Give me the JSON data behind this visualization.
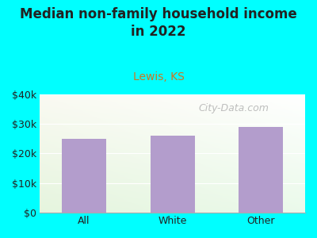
{
  "categories": [
    "All",
    "White",
    "Other"
  ],
  "values": [
    25000,
    26000,
    29000
  ],
  "bar_color": "#b39dcc",
  "title": "Median non-family household income\nin 2022",
  "subtitle": "Lewis, KS",
  "subtitle_color": "#cc7722",
  "title_color": "#222222",
  "background_color": "#00ffff",
  "plot_bg_color_topleft": "#d8efd0",
  "plot_bg_color_topright": "#f0f8f0",
  "plot_bg_color_bottom": "#eef8e8",
  "ylim": [
    0,
    40000
  ],
  "yticks": [
    0,
    10000,
    20000,
    30000,
    40000
  ],
  "ytick_labels": [
    "$0",
    "$10k",
    "$20k",
    "$30k",
    "$40k"
  ],
  "watermark": "City-Data.com",
  "title_fontsize": 12,
  "subtitle_fontsize": 10,
  "tick_fontsize": 9,
  "watermark_fontsize": 9
}
